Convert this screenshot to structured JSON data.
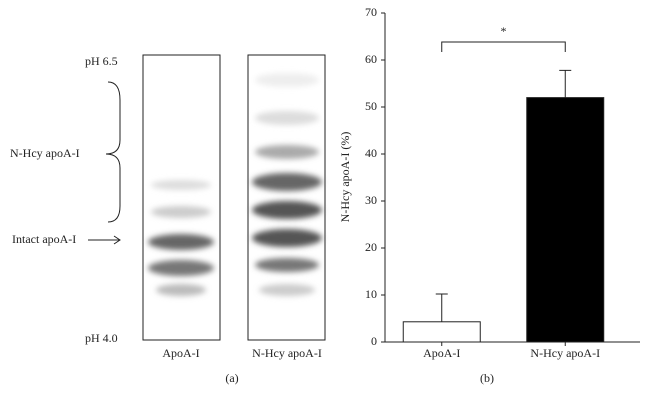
{
  "gel": {
    "top_label": "pH 6.5",
    "bottom_label": "pH 4.0",
    "bracket_label": "N-Hcy apoA-I",
    "arrow_label": "Intact apoA-I",
    "lane_labels": [
      "ApoA-I",
      "N-Hcy apoA-I"
    ],
    "panel_label": "(a)"
  },
  "chart_data": {
    "type": "bar",
    "ylabel": "N-Hcy apoA-I (%)",
    "categories": [
      "ApoA-I",
      "N-Hcy apoA-I"
    ],
    "values": [
      4.3,
      52
    ],
    "errors": [
      5.9,
      5.8
    ],
    "colors": [
      "#ffffff",
      "#000000"
    ],
    "ylim": [
      0,
      70
    ],
    "yticks": [
      0,
      10,
      20,
      30,
      40,
      50,
      60,
      70
    ],
    "annotation": "*",
    "panel_label": "(b)"
  }
}
